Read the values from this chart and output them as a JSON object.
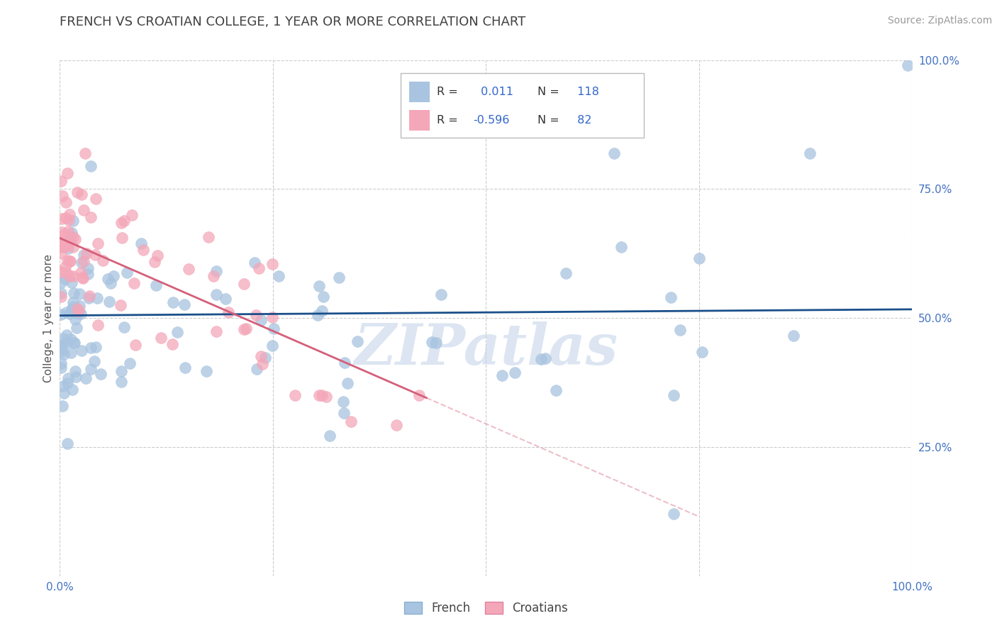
{
  "title": "FRENCH VS CROATIAN COLLEGE, 1 YEAR OR MORE CORRELATION CHART",
  "source_text": "Source: ZipAtlas.com",
  "ylabel": "College, 1 year or more",
  "xlim": [
    0.0,
    1.0
  ],
  "ylim": [
    0.0,
    1.0
  ],
  "watermark": "ZIPatlas",
  "french_color": "#a8c4e0",
  "croatian_color": "#f4a7b9",
  "french_line_color": "#1a4f8a",
  "croatian_line_color": "#d45f7a",
  "french_r": 0.011,
  "french_n": 118,
  "croatian_r": -0.596,
  "croatian_n": 82,
  "legend_label_french": "French",
  "legend_label_croatian": "Croatians",
  "background_color": "#ffffff",
  "grid_color": "#cccccc",
  "title_color": "#404040",
  "axis_color": "#4472c4",
  "seed_french": 12,
  "seed_croatian": 77,
  "french_line_y0": 0.505,
  "french_line_y1": 0.517,
  "croatian_line_y0": 0.655,
  "croatian_line_slope": -0.72
}
